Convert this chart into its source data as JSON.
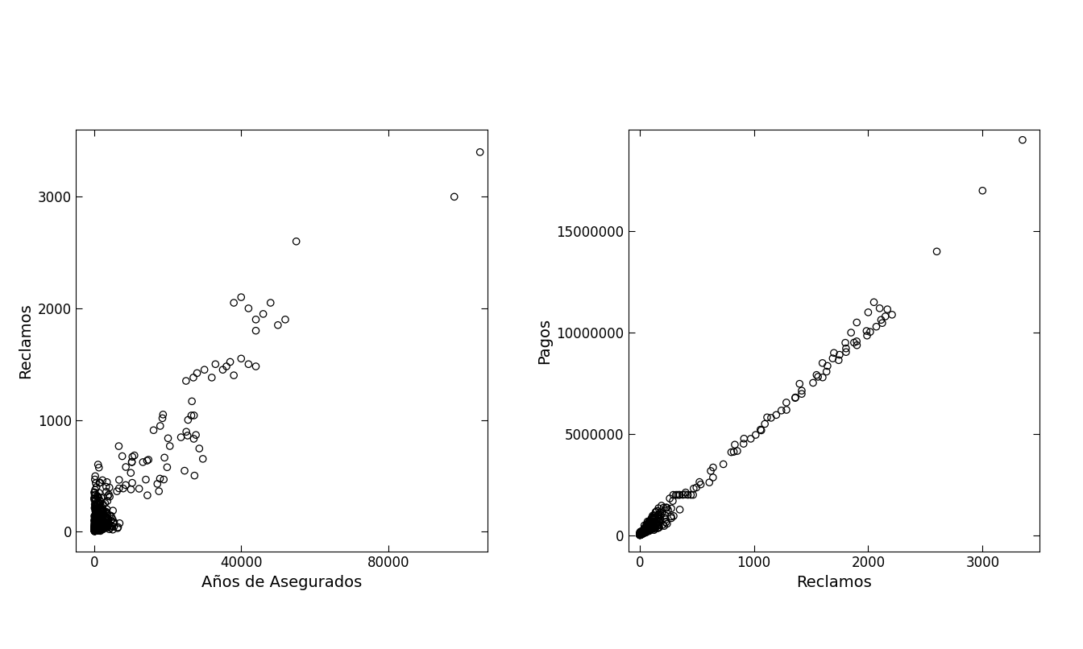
{
  "plot1": {
    "xlabel": "Años de Asegurados",
    "ylabel": "Reclamos",
    "xlim": [
      -5000,
      107000
    ],
    "ylim": [
      -180,
      3600
    ],
    "xticks": [
      0,
      40000,
      80000
    ],
    "yticks": [
      0,
      1000,
      2000,
      3000
    ]
  },
  "plot2": {
    "xlabel": "Reclamos",
    "ylabel": "Pagos",
    "xlim": [
      -100,
      3500
    ],
    "ylim": [
      -800000,
      20000000
    ],
    "xticks": [
      0,
      1000,
      2000,
      3000
    ],
    "yticks": [
      0,
      5000000,
      10000000,
      15000000
    ]
  },
  "marker_size": 36,
  "marker_color": "none",
  "marker_edge_color": "black",
  "marker_edge_width": 0.9,
  "background_color": "#ffffff",
  "label_fontsize": 14,
  "tick_fontsize": 12
}
